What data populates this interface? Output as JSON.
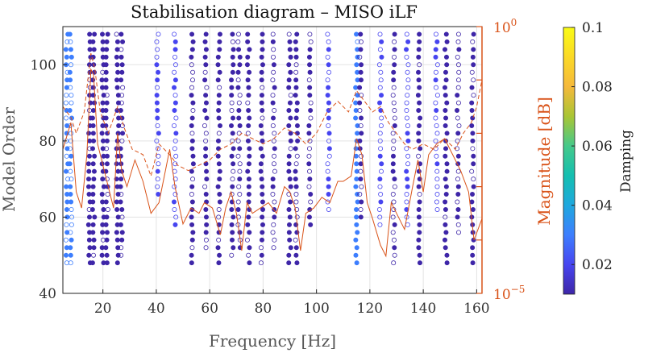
{
  "chart_data": {
    "type": "scatter",
    "title": "Stabilisation diagram – MISO iLF",
    "xlabel": "Frequency [Hz]",
    "ylabel": "Model Order",
    "y2label": "Magnitude [dB]",
    "colorbar_label": "Damping",
    "xlim": [
      5,
      162
    ],
    "ylim": [
      40,
      110
    ],
    "y2_range_exponents": [
      -5,
      0
    ],
    "x_ticks": [
      "20",
      "40",
      "60",
      "80",
      "100",
      "120",
      "140",
      "160"
    ],
    "y_ticks": [
      "40",
      "60",
      "80",
      "100"
    ],
    "y2_ticks": [
      {
        "base": "10",
        "exp": "−5"
      },
      {
        "base": "10",
        "exp": "0"
      }
    ],
    "colorbar_ticks": [
      "0.02",
      "0.04",
      "0.06",
      "0.08",
      "0.1"
    ],
    "colorbar_range": [
      0.01,
      0.1
    ],
    "grid": true,
    "colormap": [
      "#3e26a8",
      "#4745f0",
      "#3d7efe",
      "#1fa8de",
      "#14bfb0",
      "#45c98a",
      "#a9c534",
      "#f5b93b",
      "#fbd926",
      "#f9fb15"
    ],
    "magnitude_color": "#d95319",
    "columns": [
      {
        "f": 6.5,
        "orders": [
          48,
          110
        ],
        "damping": 0.03,
        "stable": 0.55
      },
      {
        "f": 8.0,
        "orders": [
          48,
          110
        ],
        "damping": 0.028,
        "stable": 0.45
      },
      {
        "f": 15.0,
        "orders": [
          48,
          110
        ],
        "damping": 0.015,
        "stable": 0.9
      },
      {
        "f": 16.5,
        "orders": [
          48,
          110
        ],
        "damping": 0.013,
        "stable": 0.95
      },
      {
        "f": 20.0,
        "orders": [
          48,
          110
        ],
        "damping": 0.012,
        "stable": 0.95
      },
      {
        "f": 21.5,
        "orders": [
          48,
          110
        ],
        "damping": 0.013,
        "stable": 0.85
      },
      {
        "f": 25.5,
        "orders": [
          48,
          110
        ],
        "damping": 0.012,
        "stable": 0.95
      },
      {
        "f": 27.0,
        "orders": [
          50,
          110
        ],
        "damping": 0.014,
        "stable": 0.6
      },
      {
        "f": 40.5,
        "orders": [
          66,
          110
        ],
        "damping": 0.018,
        "stable": 0.35
      },
      {
        "f": 47.0,
        "orders": [
          58,
          110
        ],
        "damping": 0.016,
        "stable": 0.4
      },
      {
        "f": 53.5,
        "orders": [
          48,
          110
        ],
        "damping": 0.012,
        "stable": 0.75
      },
      {
        "f": 58.5,
        "orders": [
          52,
          110
        ],
        "damping": 0.013,
        "stable": 0.6
      },
      {
        "f": 63.5,
        "orders": [
          48,
          110
        ],
        "damping": 0.012,
        "stable": 0.9
      },
      {
        "f": 68.5,
        "orders": [
          50,
          110
        ],
        "damping": 0.013,
        "stable": 0.85
      },
      {
        "f": 71.0,
        "orders": [
          52,
          110
        ],
        "damping": 0.014,
        "stable": 0.5
      },
      {
        "f": 74.5,
        "orders": [
          48,
          110
        ],
        "damping": 0.012,
        "stable": 0.8
      },
      {
        "f": 79.5,
        "orders": [
          48,
          110
        ],
        "damping": 0.012,
        "stable": 0.85
      },
      {
        "f": 84.0,
        "orders": [
          52,
          110
        ],
        "damping": 0.014,
        "stable": 0.55
      },
      {
        "f": 90.0,
        "orders": [
          48,
          110
        ],
        "damping": 0.012,
        "stable": 0.85
      },
      {
        "f": 92.5,
        "orders": [
          48,
          110
        ],
        "damping": 0.013,
        "stable": 0.6
      },
      {
        "f": 97.5,
        "orders": [
          58,
          110
        ],
        "damping": 0.015,
        "stable": 0.45
      },
      {
        "f": 104.5,
        "orders": [
          62,
          110
        ],
        "damping": 0.016,
        "stable": 0.4
      },
      {
        "f": 115.0,
        "orders": [
          48,
          110
        ],
        "damping": 0.034,
        "stable": 0.95
      },
      {
        "f": 116.5,
        "orders": [
          60,
          110
        ],
        "damping": 0.013,
        "stable": 0.7
      },
      {
        "f": 124.0,
        "orders": [
          58,
          110
        ],
        "damping": 0.018,
        "stable": 0.3
      },
      {
        "f": 129.0,
        "orders": [
          48,
          110
        ],
        "damping": 0.014,
        "stable": 0.5
      },
      {
        "f": 134.0,
        "orders": [
          58,
          110
        ],
        "damping": 0.017,
        "stable": 0.3
      },
      {
        "f": 138.5,
        "orders": [
          48,
          110
        ],
        "damping": 0.012,
        "stable": 0.85
      },
      {
        "f": 145.0,
        "orders": [
          62,
          110
        ],
        "damping": 0.016,
        "stable": 0.3
      },
      {
        "f": 148.5,
        "orders": [
          48,
          110
        ],
        "damping": 0.012,
        "stable": 0.9
      },
      {
        "f": 153.0,
        "orders": [
          56,
          110
        ],
        "damping": 0.015,
        "stable": 0.35
      },
      {
        "f": 158.5,
        "orders": [
          48,
          110
        ],
        "damping": 0.012,
        "stable": 0.85
      }
    ],
    "magnitude_solid": [
      [
        5,
        -2.3
      ],
      [
        8,
        -1.8
      ],
      [
        10,
        -3.1
      ],
      [
        12,
        -3.4
      ],
      [
        14,
        -2.4
      ],
      [
        15.5,
        -0.8
      ],
      [
        16.5,
        -0.9
      ],
      [
        18,
        -2.2
      ],
      [
        20,
        -2.6
      ],
      [
        22,
        -3.0
      ],
      [
        24,
        -3.4
      ],
      [
        25.5,
        -2.0
      ],
      [
        27,
        -2.7
      ],
      [
        29,
        -3.0
      ],
      [
        32,
        -2.5
      ],
      [
        35,
        -2.9
      ],
      [
        38,
        -3.5
      ],
      [
        41,
        -3.3
      ],
      [
        43,
        -2.8
      ],
      [
        45,
        -2.3
      ],
      [
        47,
        -3.0
      ],
      [
        50,
        -3.7
      ],
      [
        53,
        -3.4
      ],
      [
        56,
        -3.5
      ],
      [
        58,
        -3.3
      ],
      [
        61,
        -3.4
      ],
      [
        64,
        -3.9
      ],
      [
        66,
        -3.4
      ],
      [
        68,
        -3.1
      ],
      [
        70,
        -3.5
      ],
      [
        72,
        -4.2
      ],
      [
        74,
        -3.3
      ],
      [
        76,
        -3.5
      ],
      [
        79,
        -3.4
      ],
      [
        82,
        -3.3
      ],
      [
        85,
        -3.5
      ],
      [
        88,
        -3.0
      ],
      [
        90,
        -3.1
      ],
      [
        92,
        -3.4
      ],
      [
        94,
        -4.2
      ],
      [
        96,
        -3.5
      ],
      [
        99,
        -3.4
      ],
      [
        102,
        -3.2
      ],
      [
        105,
        -3.3
      ],
      [
        108,
        -2.9
      ],
      [
        110,
        -2.9
      ],
      [
        113,
        -2.8
      ],
      [
        115,
        -2.1
      ],
      [
        117,
        -2.4
      ],
      [
        119,
        -3.3
      ],
      [
        121,
        -3.6
      ],
      [
        124,
        -4.1
      ],
      [
        126,
        -4.3
      ],
      [
        128,
        -3.3
      ],
      [
        130,
        -3.5
      ],
      [
        133,
        -3.8
      ],
      [
        136,
        -3.0
      ],
      [
        138,
        -2.5
      ],
      [
        140,
        -3.1
      ],
      [
        142,
        -2.4
      ],
      [
        145,
        -2.2
      ],
      [
        148,
        -2.1
      ],
      [
        151,
        -2.4
      ],
      [
        154,
        -2.7
      ],
      [
        157,
        -3.1
      ],
      [
        159,
        -4.0
      ],
      [
        162,
        -3.6
      ]
    ],
    "magnitude_dashed": [
      [
        5,
        -1.5
      ],
      [
        8,
        -1.7
      ],
      [
        10,
        -2.0
      ],
      [
        13,
        -1.6
      ],
      [
        15.5,
        -0.5
      ],
      [
        17,
        -0.8
      ],
      [
        19,
        -1.6
      ],
      [
        22,
        -2.0
      ],
      [
        25.5,
        -1.5
      ],
      [
        28,
        -1.9
      ],
      [
        31,
        -2.3
      ],
      [
        35,
        -2.4
      ],
      [
        38,
        -2.8
      ],
      [
        41,
        -2.2
      ],
      [
        45,
        -2.4
      ],
      [
        48,
        -2.6
      ],
      [
        52,
        -2.7
      ],
      [
        56,
        -2.6
      ],
      [
        60,
        -2.5
      ],
      [
        64,
        -2.3
      ],
      [
        68,
        -2.2
      ],
      [
        72,
        -2.0
      ],
      [
        76,
        -2.1
      ],
      [
        80,
        -2.2
      ],
      [
        84,
        -2.1
      ],
      [
        88,
        -1.9
      ],
      [
        92,
        -2.0
      ],
      [
        96,
        -2.2
      ],
      [
        100,
        -2.0
      ],
      [
        104,
        -1.6
      ],
      [
        108,
        -1.4
      ],
      [
        112,
        -1.6
      ],
      [
        115,
        -1.2
      ],
      [
        118,
        -1.4
      ],
      [
        121,
        -1.6
      ],
      [
        124,
        -1.5
      ],
      [
        127,
        -1.8
      ],
      [
        130,
        -2.0
      ],
      [
        133,
        -2.2
      ],
      [
        136,
        -2.3
      ],
      [
        140,
        -2.2
      ],
      [
        144,
        -2.3
      ],
      [
        148,
        -2.1
      ],
      [
        152,
        -2.3
      ],
      [
        155,
        -2.0
      ],
      [
        158,
        -1.8
      ],
      [
        160,
        -1.5
      ],
      [
        162,
        -1.0
      ]
    ]
  }
}
